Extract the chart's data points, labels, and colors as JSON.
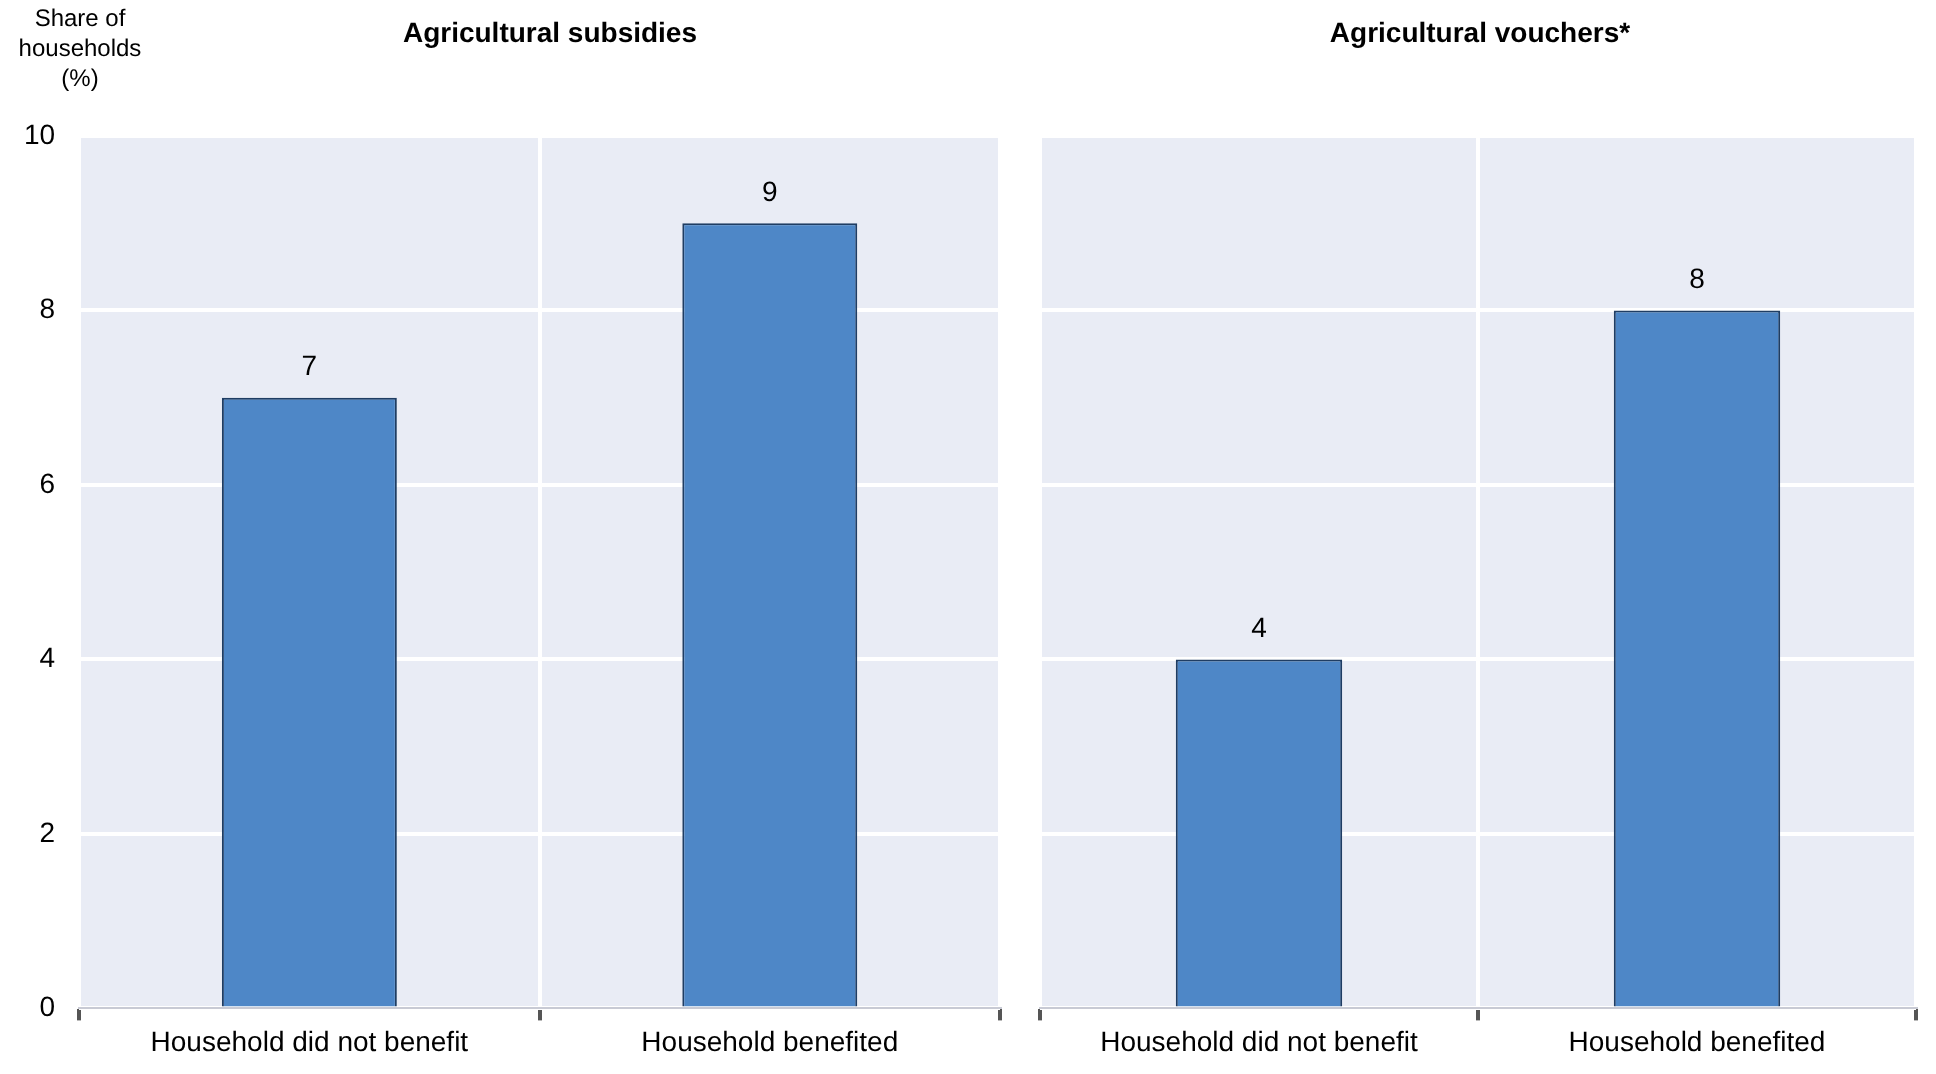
{
  "chart_data": [
    {
      "type": "bar",
      "title": "Agricultural subsidies",
      "ylabel": "Share of households (%)",
      "categories": [
        "Household did not benefit",
        "Household benefited"
      ],
      "values": [
        7,
        9
      ],
      "color": "#4e87c7",
      "ylim": [
        0,
        10
      ],
      "yticks": [
        0,
        2,
        4,
        6,
        8,
        10
      ],
      "grid": true,
      "data_labels": true
    },
    {
      "type": "bar",
      "title": "Agricultural vouchers*",
      "categories": [
        "Household did not benefit",
        "Household benefited"
      ],
      "values": [
        4,
        8
      ],
      "color": "#4e87c7",
      "ylim": [
        0,
        10
      ],
      "yticks": [
        0,
        2,
        4,
        6,
        8,
        10
      ],
      "grid": true,
      "data_labels": true,
      "tick_labels": "x"
    }
  ]
}
